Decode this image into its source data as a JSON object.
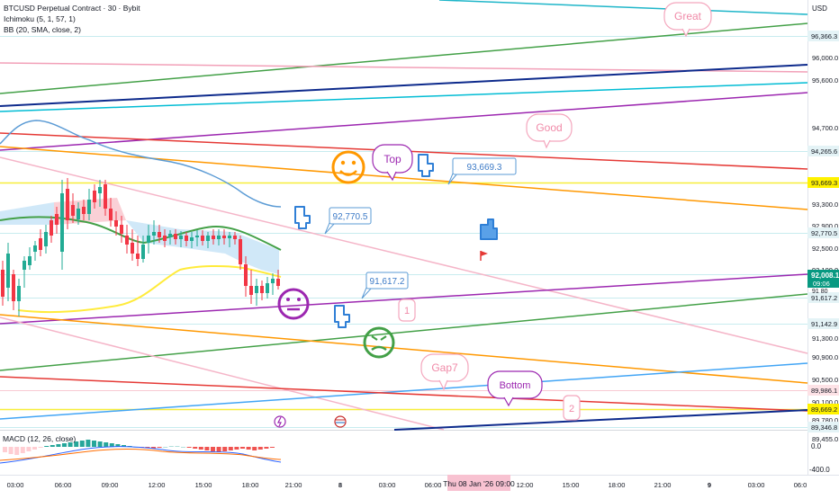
{
  "legend": {
    "symbol_line": "BTCUSD Perpetual Contract · 30 · Bybit",
    "ichimoku": "Ichimoku (5, 1, 57, 1)",
    "bb": "BB (20, SMA, close, 2)",
    "macd": "MACD (12, 26, close)"
  },
  "currency": "USD",
  "price_axis": {
    "ticks": [
      "96,000.0",
      "95,600.0",
      "94,700.0",
      "93,300.0",
      "92,900.0",
      "92,500.0",
      "92,100.0",
      "91,300.0",
      "90,900.0",
      "90,500.0",
      "90,100.0",
      "89,780.0",
      "89,455.0"
    ],
    "labels": [
      {
        "text": "96,366.3",
        "bg": "#e4f3f6",
        "fg": "#131722"
      },
      {
        "text": "94,265.6",
        "bg": "#e4f3f6",
        "fg": "#131722"
      },
      {
        "text": "93,669.3",
        "bg": "#fff200",
        "fg": "#131722"
      },
      {
        "text": "92,770.5",
        "bg": "#e4f3f6",
        "fg": "#131722"
      },
      {
        "text": "91,617.2",
        "bg": "#e4f3f6",
        "fg": "#131722"
      },
      {
        "text": "91,142.9",
        "bg": "#e4f3f6",
        "fg": "#131722"
      },
      {
        "text": "89,986.1",
        "bg": "#fde2e6",
        "fg": "#131722"
      },
      {
        "text": "89,669.2",
        "bg": "#fff200",
        "fg": "#131722"
      },
      {
        "text": "89,346.8",
        "bg": "#e4f3f6",
        "fg": "#131722"
      }
    ],
    "current_price": "92,008.1",
    "countdown": "09:06",
    "partial_tick": "91 80"
  },
  "macd_axis": [
    "0.0",
    "-400.0"
  ],
  "time_axis": {
    "ticks": [
      "03:00",
      "06:00",
      "09:00",
      "12:00",
      "15:00",
      "18:00",
      "21:00",
      "8",
      "03:00",
      "06:00",
      "12:00",
      "15:00",
      "18:00",
      "21:00",
      "9",
      "03:00",
      "06:0"
    ],
    "crosshair_label": "Thu 08 Jan '26   09:00"
  },
  "annotations": {
    "great": "Great",
    "good": "Good",
    "top": "Top",
    "bottom": "Bottom",
    "gap7": "Gap7",
    "one": "1",
    "two": "2",
    "callout_top": "93,669.3",
    "callout_mid": "92,770.5",
    "callout_low": "91,617.2"
  },
  "colors": {
    "price_up": "#22ab94",
    "price_down": "#f23645",
    "cyan": "#00bcd4",
    "green": "#43a047",
    "navy": "#0d2a8c",
    "purple": "#9c27b0",
    "red": "#e53935",
    "orange": "#ff9800",
    "pink": "#f48fb1",
    "blue": "#42a5f5",
    "yellow": "#ffeb3b"
  }
}
